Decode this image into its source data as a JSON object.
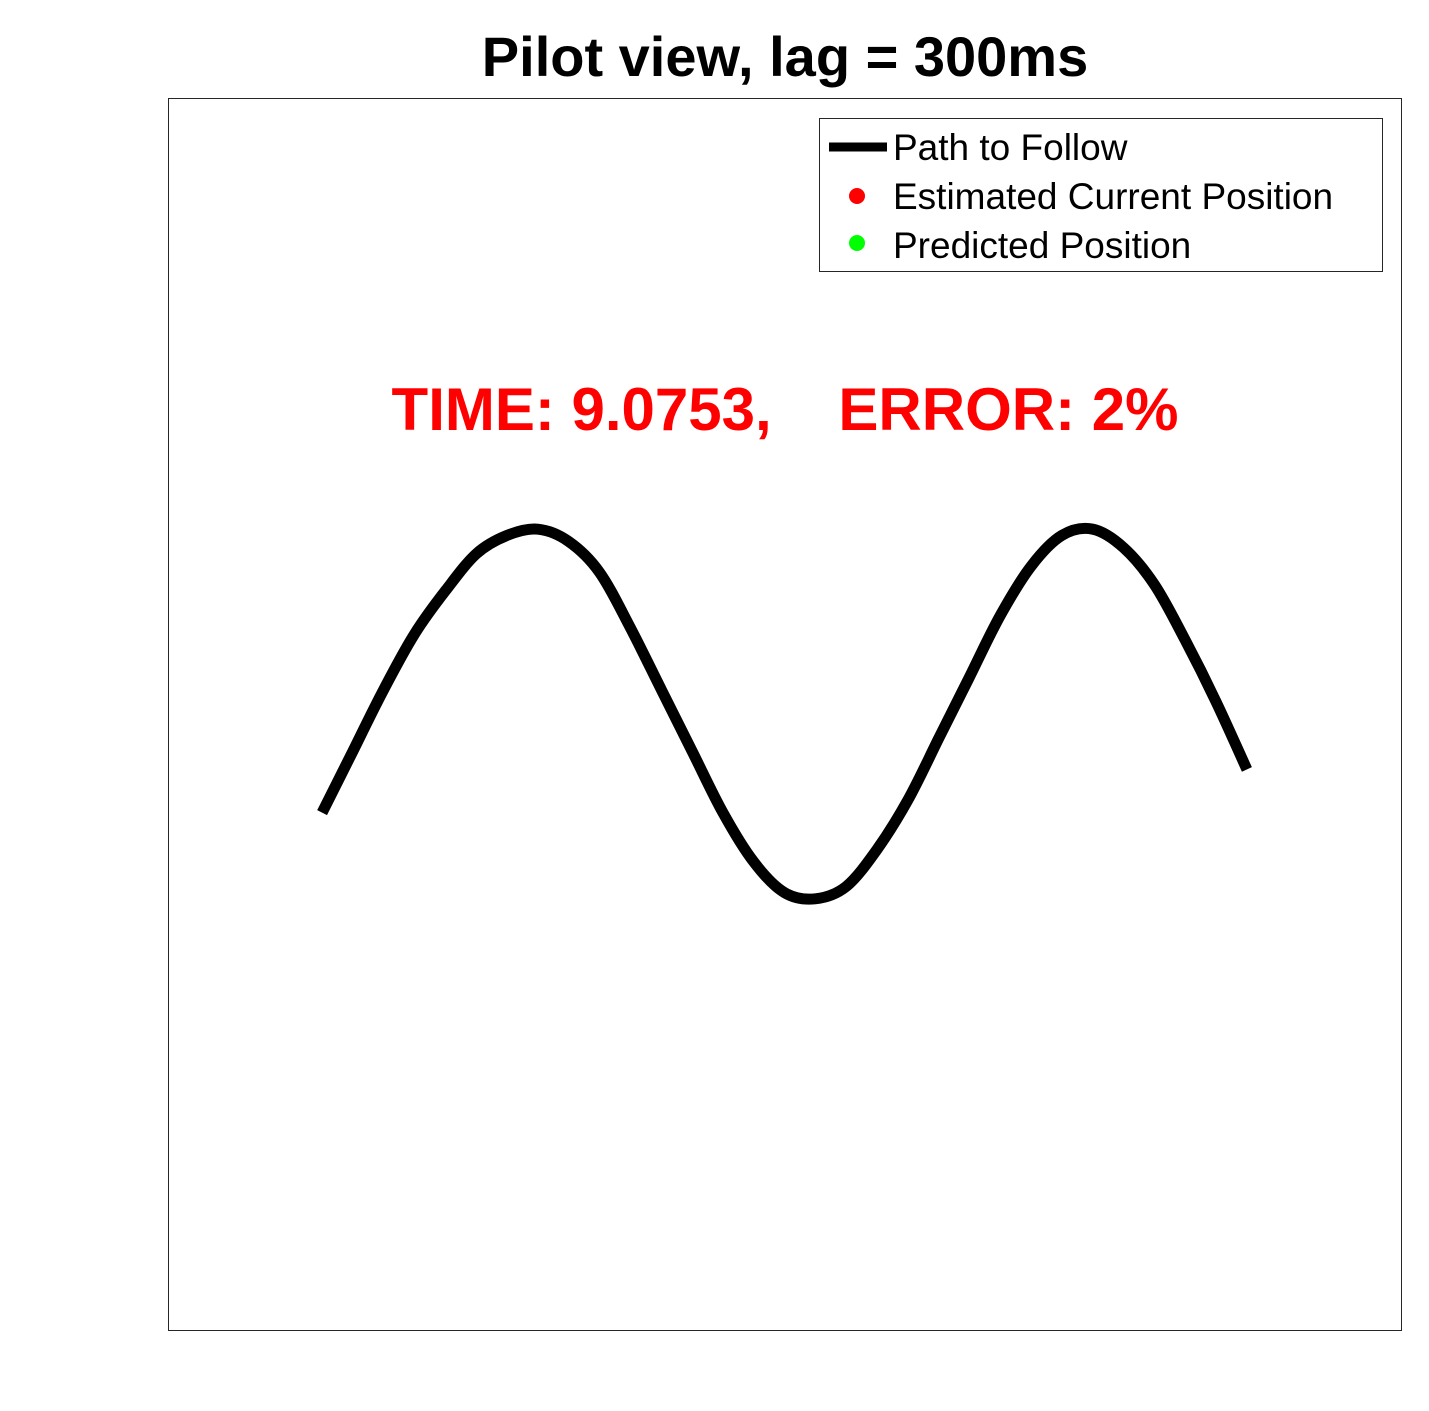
{
  "chart_data": {
    "type": "line",
    "title": "Pilot view, lag = 300ms",
    "xlabel": "",
    "ylabel": "",
    "axes_visible": false,
    "grid": false,
    "xlim": [
      -1,
      1
    ],
    "ylim": [
      -1,
      1
    ],
    "series": [
      {
        "name": "Path to Follow",
        "style": "line",
        "color": "#000000",
        "x": [
          -0.75,
          -0.7,
          -0.65,
          -0.6,
          -0.55,
          -0.5,
          -0.45,
          -0.4,
          -0.35,
          -0.3,
          -0.25,
          -0.2,
          -0.15,
          -0.1,
          -0.05,
          0.0,
          0.05,
          0.1,
          0.15,
          0.2,
          0.25,
          0.3,
          0.35,
          0.4,
          0.45,
          0.5,
          0.55,
          0.6,
          0.65,
          0.7,
          0.75
        ],
        "y": [
          -0.16,
          -0.06,
          0.04,
          0.13,
          0.2,
          0.26,
          0.29,
          0.3,
          0.28,
          0.23,
          0.14,
          0.04,
          -0.06,
          -0.16,
          -0.24,
          -0.29,
          -0.3,
          -0.28,
          -0.22,
          -0.14,
          -0.04,
          0.06,
          0.16,
          0.24,
          0.29,
          0.3,
          0.27,
          0.21,
          0.12,
          0.02,
          -0.09
        ]
      },
      {
        "name": "Estimated Current Position",
        "style": "marker",
        "color": "#ff0000",
        "x": [],
        "y": []
      },
      {
        "name": "Predicted Position",
        "style": "marker",
        "color": "#00ff00",
        "x": [],
        "y": []
      }
    ],
    "legend": {
      "placement": "top-right",
      "entries": [
        "Path to Follow",
        "Estimated Current Position",
        "Predicted Position"
      ]
    },
    "annotation": "TIME: 9.0753,    ERROR: 2%"
  }
}
